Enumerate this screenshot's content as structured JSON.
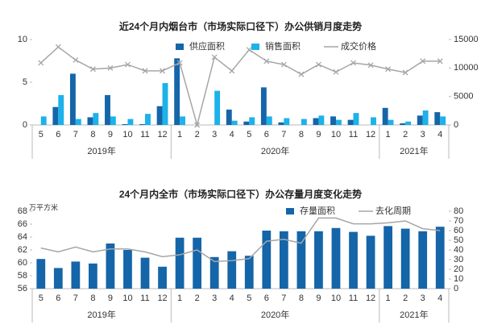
{
  "chart_data": [
    {
      "type": "combo",
      "title": "近24个月内烟台市（市场实际口径下）办公供销月度走势",
      "categories": [
        "5",
        "6",
        "7",
        "8",
        "9",
        "10",
        "11",
        "12",
        "1",
        "2",
        "3",
        "4",
        "5",
        "6",
        "7",
        "8",
        "9",
        "10",
        "11",
        "12",
        "1",
        "2",
        "3",
        "4"
      ],
      "year_groups": [
        {
          "label": "2019年",
          "span": 8
        },
        {
          "label": "2020年",
          "span": 12
        },
        {
          "label": "2021年",
          "span": 4
        }
      ],
      "series": [
        {
          "name": "供应面积",
          "type": "bar",
          "color": "#1565a9",
          "values": [
            0,
            2.1,
            6.0,
            0.9,
            3.5,
            0.1,
            0.1,
            2.2,
            7.8,
            0,
            0,
            1.8,
            0.4,
            4.4,
            0.3,
            0,
            0.8,
            1.0,
            0.6,
            0,
            2.0,
            0.2,
            1.1,
            1.5
          ]
        },
        {
          "name": "销售面积",
          "type": "bar",
          "color": "#1cb2ea",
          "values": [
            1.0,
            3.5,
            0.7,
            1.4,
            1.0,
            0.7,
            1.3,
            4.9,
            1.0,
            0,
            4.0,
            0.5,
            0.9,
            1.0,
            0.8,
            0.7,
            1.1,
            0.6,
            1.4,
            0.9,
            0.6,
            0.4,
            1.7,
            1.0
          ]
        },
        {
          "name": "成交价格",
          "type": "line",
          "axis": "y2",
          "color": "#a6a6a6",
          "marker": "x",
          "values": [
            10900,
            13700,
            11400,
            9800,
            10000,
            10600,
            9500,
            9500,
            10900,
            0,
            11900,
            9500,
            13200,
            11200,
            10600,
            8900,
            10600,
            9300,
            10900,
            10500,
            9800,
            9200,
            11200,
            11200
          ]
        }
      ],
      "ylim": [
        0,
        10
      ],
      "yticks": [
        0,
        5,
        10
      ],
      "y2lim": [
        0,
        15000
      ],
      "y2ticks": [
        0,
        5000,
        10000,
        15000
      ],
      "grid": false
    },
    {
      "type": "combo",
      "title": "24个月内全市（市场实际口径下）办公存量月度变化走势",
      "y_label": "万平方米",
      "categories": [
        "5",
        "6",
        "7",
        "8",
        "9",
        "10",
        "11",
        "12",
        "1",
        "2",
        "3",
        "4",
        "5",
        "6",
        "7",
        "8",
        "9",
        "10",
        "11",
        "12",
        "1",
        "2",
        "3",
        "4"
      ],
      "year_groups": [
        {
          "label": "2019年",
          "span": 8
        },
        {
          "label": "2020年",
          "span": 12
        },
        {
          "label": "2021年",
          "span": 4
        }
      ],
      "series": [
        {
          "name": "存量面积",
          "type": "bar",
          "color": "#1565a9",
          "values": [
            60.6,
            59.2,
            60.2,
            59.9,
            63.0,
            62.0,
            60.8,
            59.4,
            63.9,
            63.9,
            60.9,
            61.8,
            61.1,
            65.0,
            64.9,
            64.9,
            64.9,
            65.4,
            64.8,
            64.2,
            65.7,
            65.3,
            64.9,
            65.6
          ]
        },
        {
          "name": "去化周期",
          "type": "line",
          "axis": "y2",
          "color": "#a6a6a6",
          "values": [
            42,
            38,
            43,
            38,
            41,
            41,
            38,
            33,
            35,
            40,
            28,
            29,
            31,
            49,
            51,
            47,
            73,
            73,
            67,
            67,
            68,
            70,
            62,
            60
          ]
        }
      ],
      "ylim": [
        56,
        68
      ],
      "yticks": [
        56,
        58,
        60,
        62,
        64,
        66,
        68
      ],
      "y2lim": [
        0,
        80
      ],
      "y2ticks": [
        0,
        10,
        20,
        30,
        40,
        50,
        60,
        70,
        80
      ],
      "grid": false
    }
  ]
}
